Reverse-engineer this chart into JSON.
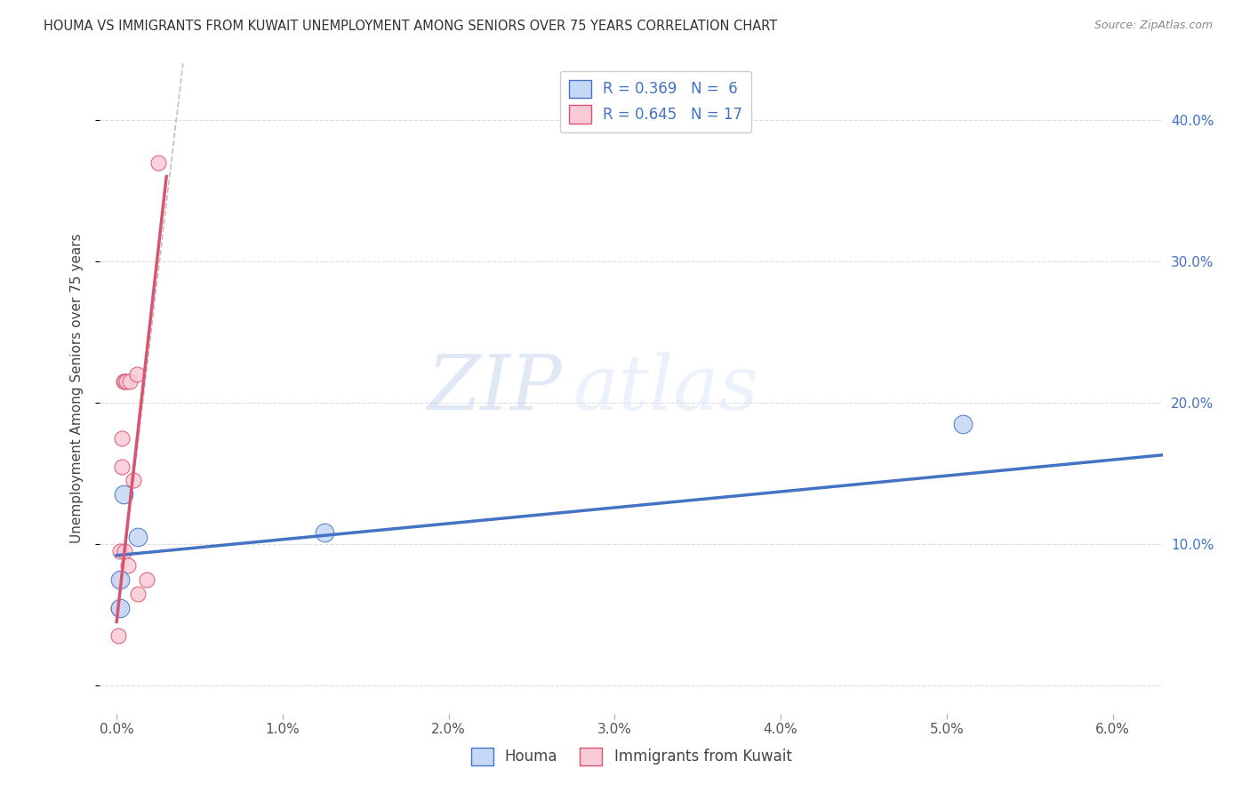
{
  "title": "HOUMA VS IMMIGRANTS FROM KUWAIT UNEMPLOYMENT AMONG SENIORS OVER 75 YEARS CORRELATION CHART",
  "source": "Source: ZipAtlas.com",
  "ylabel": "Unemployment Among Seniors over 75 years",
  "x_ticks": [
    0.0,
    0.01,
    0.02,
    0.03,
    0.04,
    0.05,
    0.06
  ],
  "x_tick_labels": [
    "0.0%",
    "1.0%",
    "2.0%",
    "3.0%",
    "4.0%",
    "5.0%",
    "6.0%"
  ],
  "y_ticks": [
    0.0,
    0.1,
    0.2,
    0.3,
    0.4
  ],
  "y_tick_labels_right": [
    "",
    "10.0%",
    "20.0%",
    "30.0%",
    "40.0%"
  ],
  "xlim": [
    -0.001,
    0.063
  ],
  "ylim": [
    -0.02,
    0.44
  ],
  "houma_R": 0.369,
  "houma_N": 6,
  "kuwait_R": 0.645,
  "kuwait_N": 17,
  "houma_color": "#c5d8f5",
  "kuwait_color": "#f9cad8",
  "houma_line_color": "#4472c4",
  "kuwait_line_color": "#d9546e",
  "houma_points_x": [
    0.0002,
    0.0002,
    0.0004,
    0.0013,
    0.0125,
    0.051
  ],
  "houma_points_y": [
    0.055,
    0.075,
    0.135,
    0.105,
    0.108,
    0.185
  ],
  "kuwait_points_x": [
    0.0001,
    0.0001,
    0.0002,
    0.0002,
    0.0003,
    0.0003,
    0.0004,
    0.0005,
    0.0005,
    0.0006,
    0.0007,
    0.0008,
    0.001,
    0.0012,
    0.0013,
    0.0018,
    0.0025
  ],
  "kuwait_points_y": [
    0.055,
    0.035,
    0.075,
    0.095,
    0.175,
    0.155,
    0.215,
    0.095,
    0.215,
    0.215,
    0.085,
    0.215,
    0.145,
    0.22,
    0.065,
    0.075,
    0.37
  ],
  "houma_trend_x": [
    0.0,
    0.063
  ],
  "houma_trend_y": [
    0.092,
    0.163
  ],
  "kuwait_trend_x": [
    0.0,
    0.003
  ],
  "kuwait_trend_y": [
    0.045,
    0.36
  ],
  "dash_line_x": [
    0.0,
    0.004
  ],
  "dash_line_y": [
    0.045,
    0.44
  ],
  "houma_marker_size": 220,
  "kuwait_marker_size": 150,
  "background_color": "#ffffff",
  "grid_color": "#dddddd",
  "watermark_zip": "ZIP",
  "watermark_atlas": "atlas",
  "legend_labels": [
    "Houma",
    "Immigrants from Kuwait"
  ]
}
